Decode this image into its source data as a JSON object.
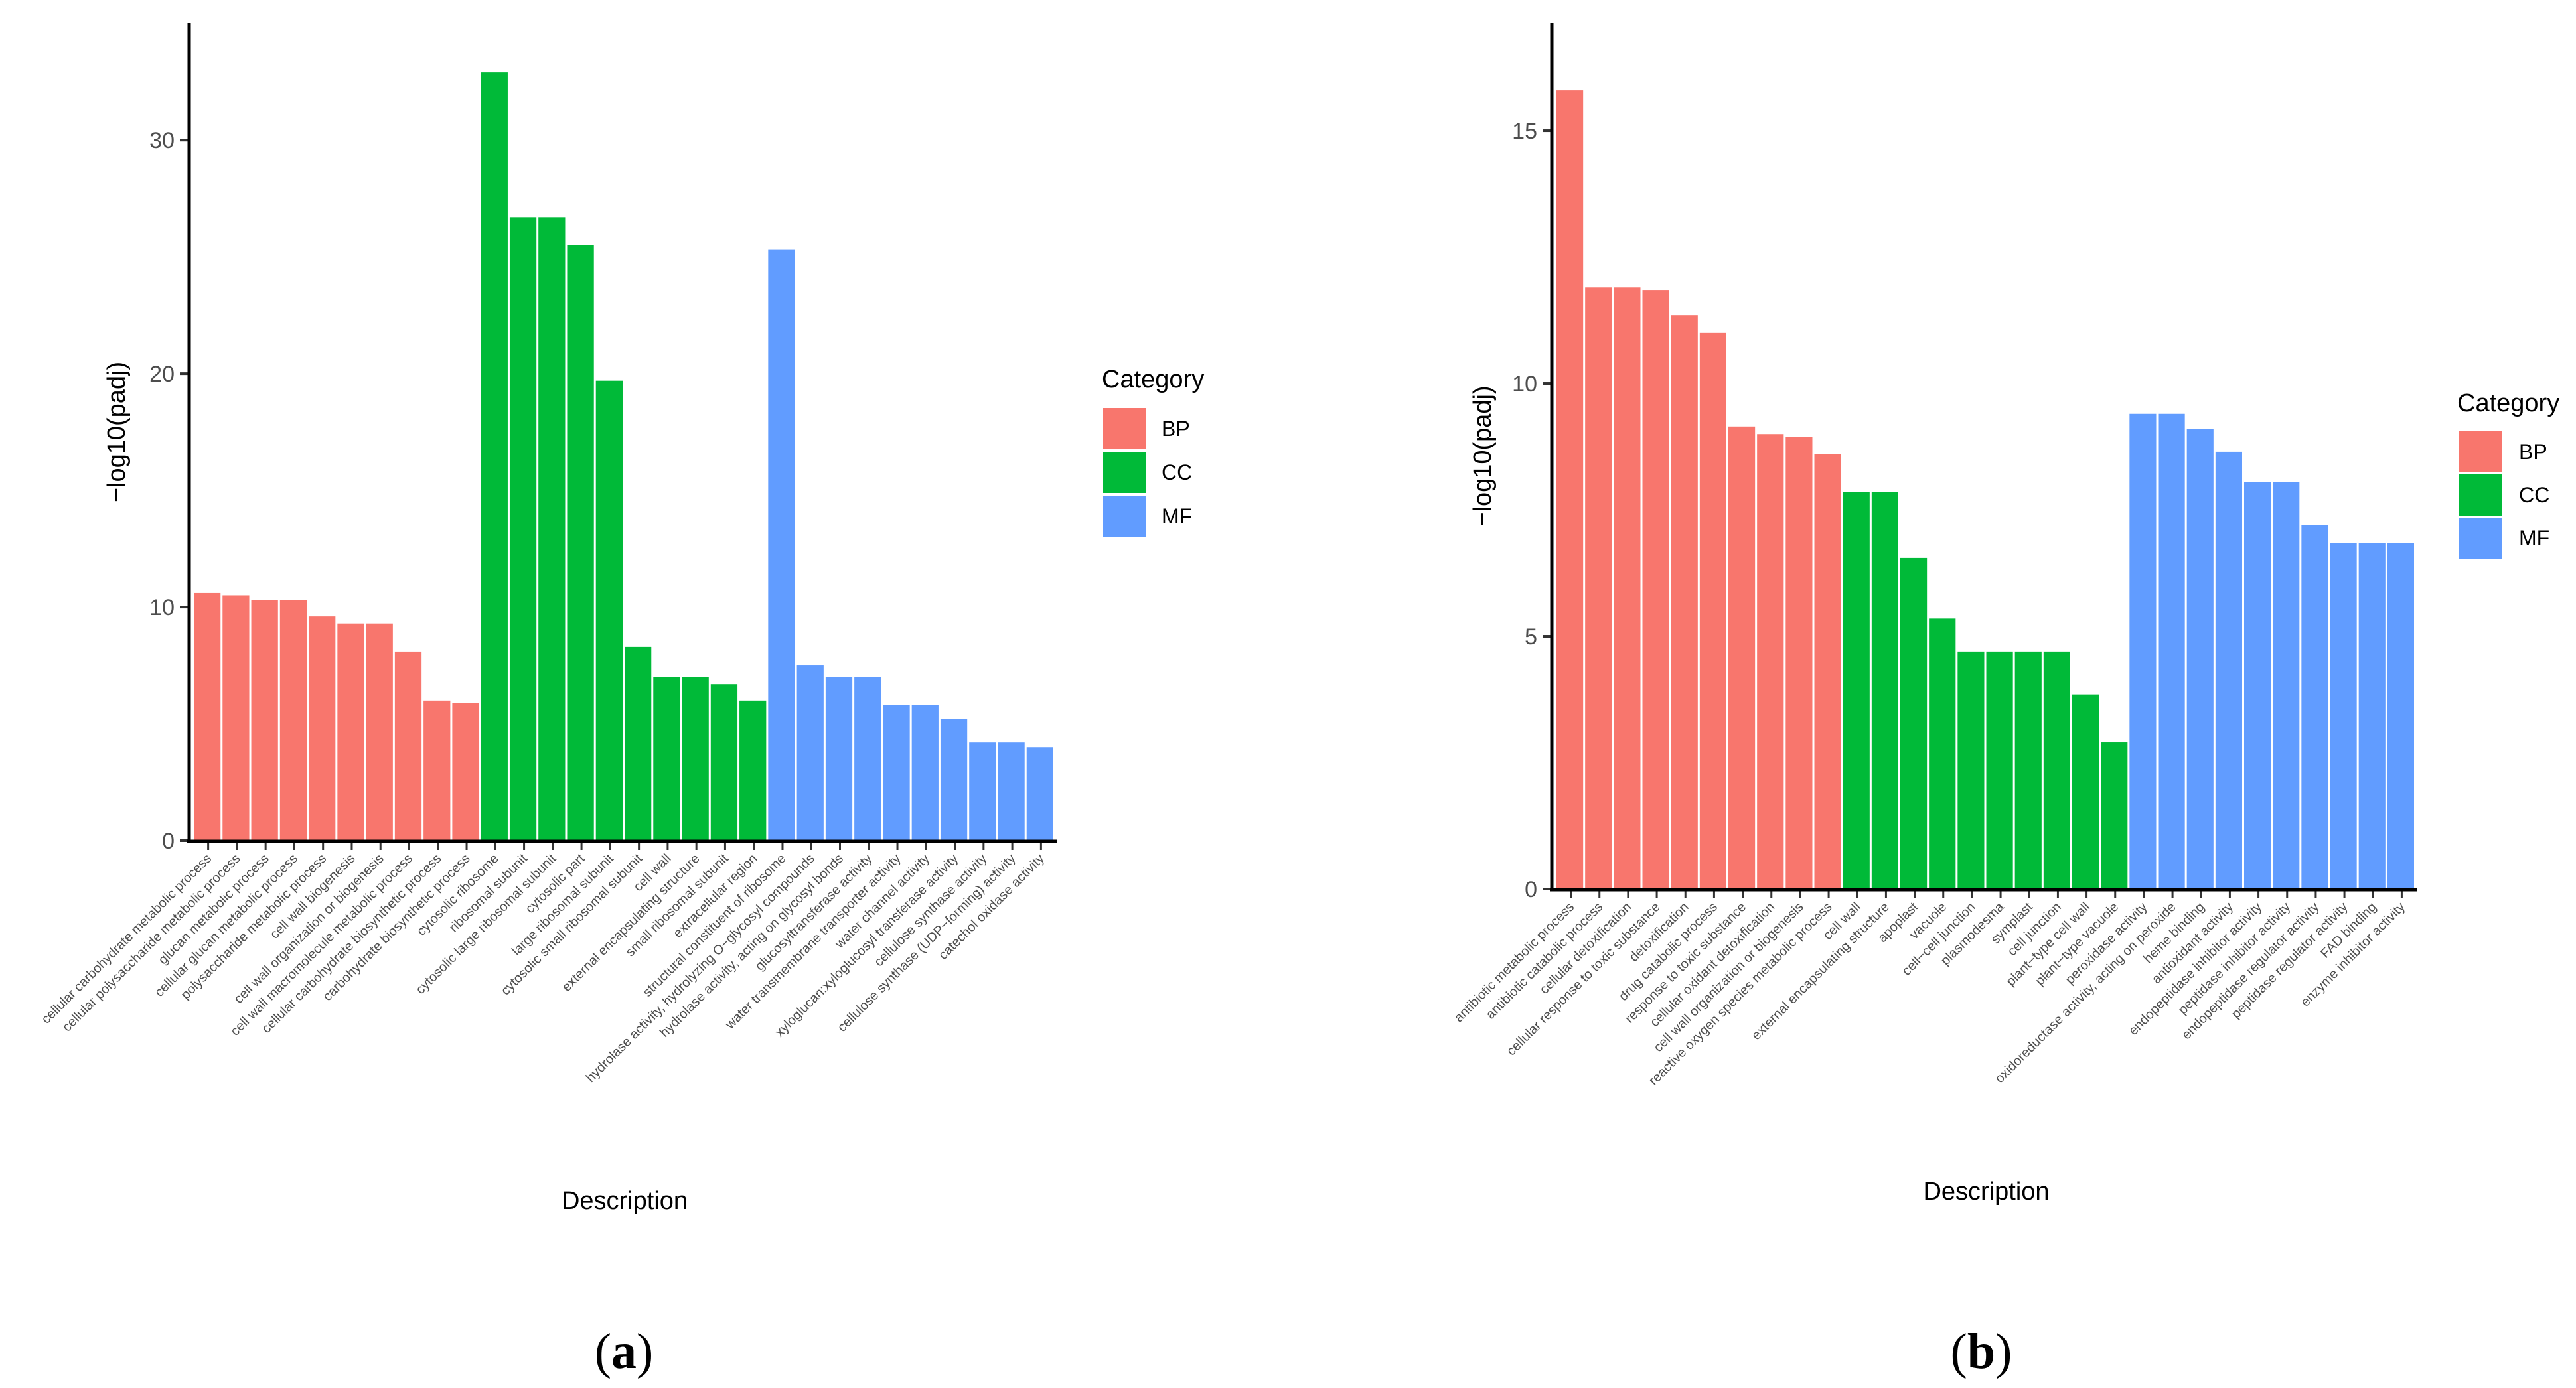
{
  "legend_title": "Category",
  "colors": {
    "BP": "#F8766D",
    "CC": "#00BA38",
    "MF": "#619CFF"
  },
  "chart_data": [
    {
      "type": "bar",
      "panel_label": "(a)",
      "panel_letter": "a",
      "xlabel": "Description",
      "ylabel": "−log10(padj)",
      "ylim": [
        0,
        33.5
      ],
      "yticks": [
        0,
        10,
        20,
        30
      ],
      "legend_title": "Category",
      "legend": [
        "BP",
        "CC",
        "MF"
      ],
      "categories": [
        "cellular carbohydrate metabolic process",
        "cellular polysaccharide metabolic process",
        "glucan metabolic process",
        "cellular glucan metabolic process",
        "polysaccharide metabolic process",
        "cell wall biogenesis",
        "cell wall organization or biogenesis",
        "cell wall macromolecule metabolic process",
        "cellular carbohydrate biosynthetic process",
        "carbohydrate biosynthetic process",
        "cytosolic ribosome",
        "ribosomal subunit",
        "cytosolic large ribosomal subunit",
        "cytosolic part",
        "large ribosomal subunit",
        "cytosolic small ribosomal subunit",
        "cell wall",
        "external encapsulating structure",
        "small ribosomal subunit",
        "extracellular region",
        "structural constituent of ribosome",
        "hydrolase activity, hydrolyzing O−glycosyl compounds",
        "hydrolase activity, acting on glycosyl bonds",
        "glucosyltransferase activity",
        "water transmembrane transporter activity",
        "water channel activity",
        "xyloglucan:xyloglucosyl transferase activity",
        "cellulose synthase activity",
        "cellulose synthase (UDP−forming) activity",
        "catechol oxidase activity"
      ],
      "groups": [
        "BP",
        "BP",
        "BP",
        "BP",
        "BP",
        "BP",
        "BP",
        "BP",
        "BP",
        "BP",
        "CC",
        "CC",
        "CC",
        "CC",
        "CC",
        "CC",
        "CC",
        "CC",
        "CC",
        "CC",
        "MF",
        "MF",
        "MF",
        "MF",
        "MF",
        "MF",
        "MF",
        "MF",
        "MF",
        "MF"
      ],
      "values": [
        10.6,
        10.5,
        10.3,
        10.3,
        9.6,
        9.3,
        9.3,
        8.1,
        6.0,
        5.9,
        32.9,
        26.7,
        26.7,
        25.5,
        19.7,
        8.3,
        7.0,
        7.0,
        6.7,
        6.0,
        25.3,
        7.5,
        7.0,
        7.0,
        5.8,
        5.8,
        5.2,
        4.2,
        4.2,
        4.0
      ]
    },
    {
      "type": "bar",
      "panel_label": "(b)",
      "panel_letter": "b",
      "xlabel": "Description",
      "ylabel": "−log10(padj)",
      "ylim": [
        0,
        16.3
      ],
      "yticks": [
        0,
        5,
        10,
        15
      ],
      "legend_title": "Category",
      "legend": [
        "BP",
        "CC",
        "MF"
      ],
      "categories": [
        "antibiotic metabolic process",
        "antibiotic catabolic process",
        "cellular detoxification",
        "cellular response to toxic substance",
        "detoxification",
        "drug catabolic process",
        "response to toxic substance",
        "cellular oxidant detoxification",
        "cell wall organization or biogenesis",
        "reactive oxygen species metabolic process",
        "cell wall",
        "external encapsulating structure",
        "apoplast",
        "vacuole",
        "cell−cell junction",
        "plasmodesma",
        "symplast",
        "cell junction",
        "plant−type cell wall",
        "plant−type vacuole",
        "peroxidase activity",
        "oxidoreductase activity, acting on peroxide",
        "heme binding",
        "antioxidant activity",
        "endopeptidase inhibitor activity",
        "peptidase inhibitor activity",
        "endopeptidase regulator activity",
        "peptidase regulator activity",
        "FAD binding",
        "enzyme inhibitor activity"
      ],
      "groups": [
        "BP",
        "BP",
        "BP",
        "BP",
        "BP",
        "BP",
        "BP",
        "BP",
        "BP",
        "BP",
        "CC",
        "CC",
        "CC",
        "CC",
        "CC",
        "CC",
        "CC",
        "CC",
        "CC",
        "CC",
        "MF",
        "MF",
        "MF",
        "MF",
        "MF",
        "MF",
        "MF",
        "MF",
        "MF",
        "MF"
      ],
      "values": [
        15.8,
        11.9,
        11.9,
        11.85,
        11.35,
        11.0,
        9.15,
        9.0,
        8.95,
        8.6,
        7.85,
        7.85,
        6.55,
        5.35,
        4.7,
        4.7,
        4.7,
        4.7,
        3.85,
        2.9,
        9.4,
        9.4,
        9.1,
        8.65,
        8.05,
        8.05,
        7.2,
        6.85,
        6.85,
        6.85
      ]
    }
  ]
}
